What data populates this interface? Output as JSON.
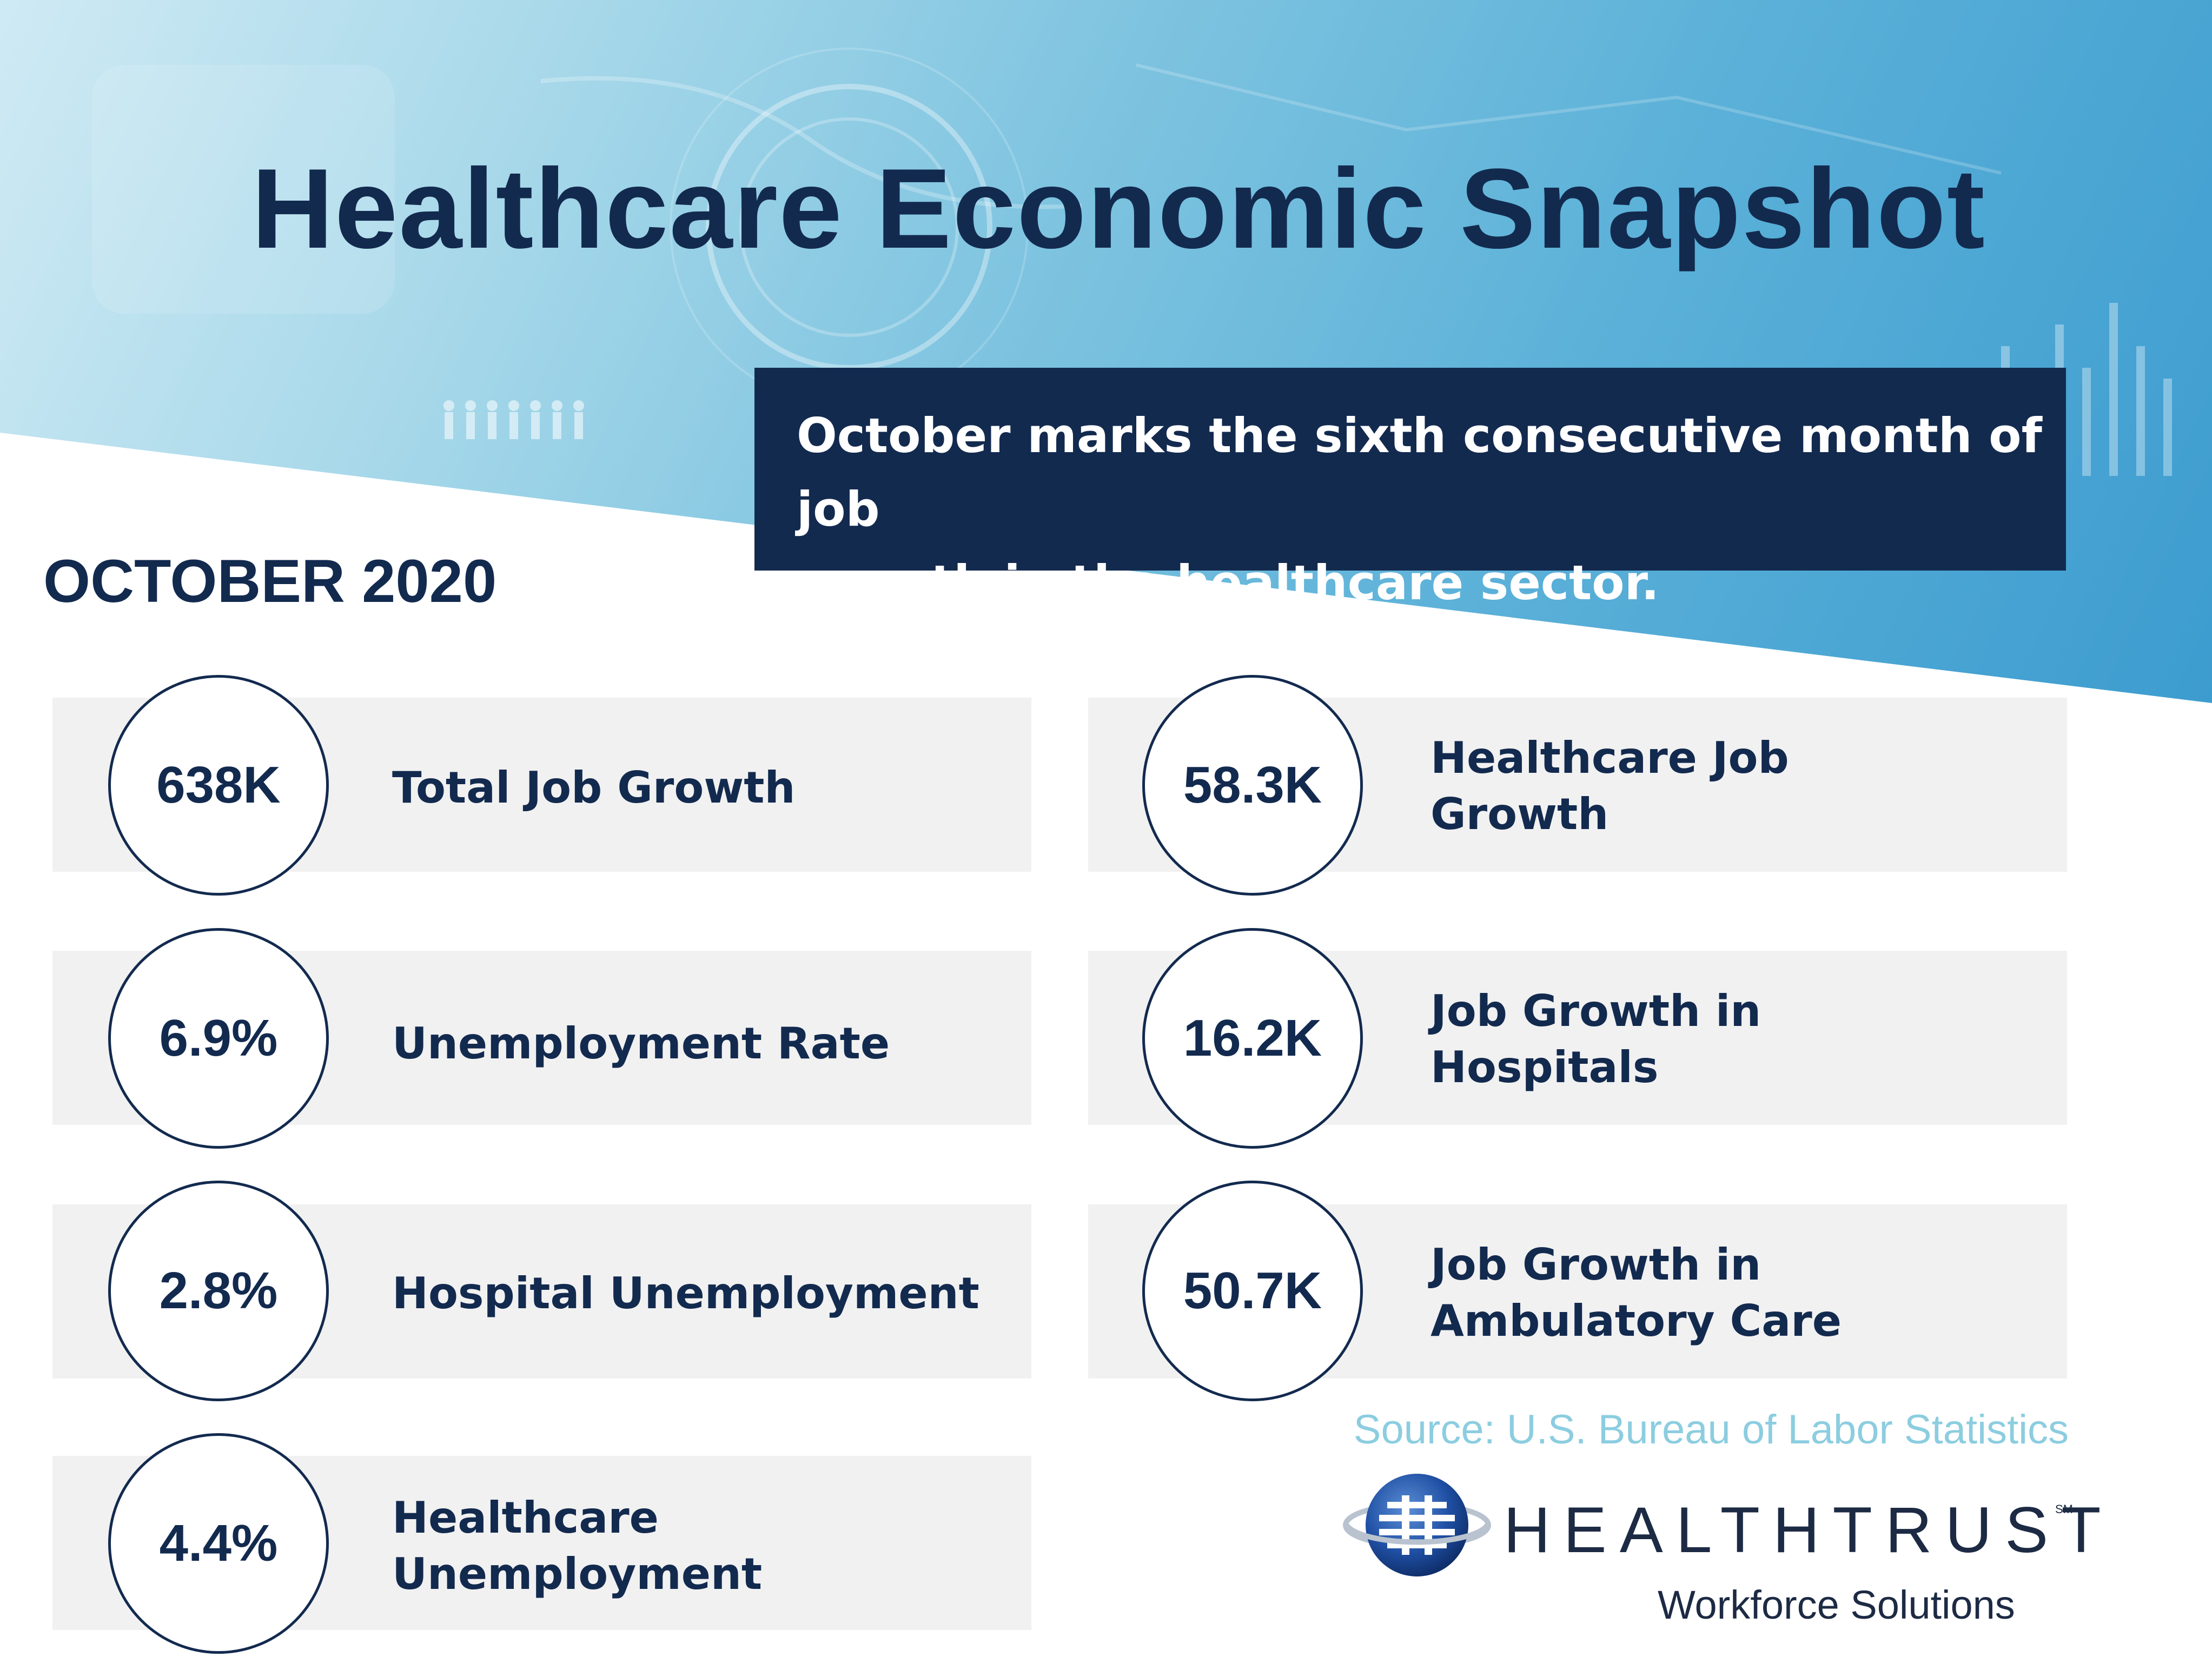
{
  "header": {
    "title": "Healthcare Economic Snapshot",
    "callout": "October marks the sixth consecutive month of job\ngrowth in the healthcare sector.",
    "period": "OCTOBER 2020"
  },
  "stats_left": [
    {
      "value": "638K",
      "label": "Total Job Growth"
    },
    {
      "value": "6.9%",
      "label": "Unemployment Rate"
    },
    {
      "value": "2.8%",
      "label": "Hospital Unemployment"
    },
    {
      "value": "4.4%",
      "label": "Healthcare\nUnemployment"
    }
  ],
  "stats_right": [
    {
      "value": "58.3K",
      "label": "Healthcare Job\nGrowth"
    },
    {
      "value": "16.2K",
      "label": "Job Growth in\nHospitals"
    },
    {
      "value": "50.7K",
      "label": "Job Growth in\nAmbulatory Care"
    }
  ],
  "footer": {
    "source": "Source: U.S. Bureau of Labor Statistics",
    "brand": "HEALTHTRUST",
    "brand_mark": "SM",
    "tagline": "Workforce Solutions"
  },
  "colors": {
    "navy": "#132a4f",
    "card_bg": "#f1f1f1",
    "source_text": "#8ccde0",
    "hero_blue": "#5ab0d8"
  },
  "icons": [
    "people-row-icon",
    "globe-logo-icon"
  ]
}
